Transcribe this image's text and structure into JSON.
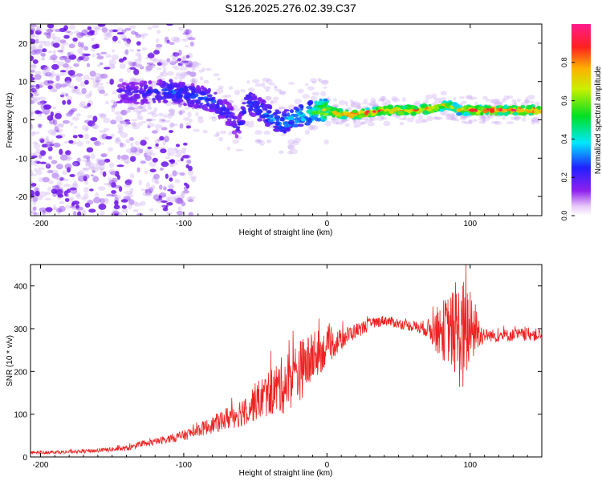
{
  "figure_title": "S126.2025.276.02.39.C37",
  "colors": {
    "background": "#ffffff",
    "axis": "#000000",
    "snr_line": "#ee2222",
    "scatter_faint": "#c9a6f2",
    "scatter_mid": "#8a3bf0",
    "scatter_dark": "#6a12e8"
  },
  "chart_data": [
    {
      "type": "heatmap",
      "title": "",
      "xlabel": "Height of straight line (km)",
      "ylabel": "Frequency (Hz)",
      "xlim": [
        -207,
        150
      ],
      "ylim": [
        -25,
        25
      ],
      "xticks": [
        -200,
        -100,
        0,
        100
      ],
      "yticks": [
        -20,
        -10,
        0,
        10,
        20
      ],
      "colorbar": {
        "label": "Normalized spectral amplitude",
        "range": [
          0,
          1
        ],
        "ticks": [
          0.0,
          0.2,
          0.4,
          0.6,
          0.8
        ],
        "tick_labels": [
          "0.0",
          "0.2",
          "0.4",
          "0.6",
          "0.8"
        ]
      },
      "ridge": {
        "description_free": true,
        "x": [
          -150,
          -130,
          -110,
          -95,
          -80,
          -70,
          -62,
          -55,
          -48,
          -40,
          -32,
          -25,
          -15,
          -5,
          0,
          10,
          20,
          40,
          60,
          75,
          85,
          92,
          100,
          120,
          150
        ],
        "freq": [
          7,
          7,
          7.5,
          6.5,
          5,
          2,
          -2,
          5,
          3,
          1,
          -1,
          0.5,
          1.5,
          2.5,
          2.5,
          1.5,
          1.5,
          2.5,
          2.5,
          3,
          4,
          2.5,
          2.5,
          2.5,
          2.5
        ],
        "amplitude": [
          0.22,
          0.22,
          0.3,
          0.28,
          0.28,
          0.25,
          0.22,
          0.3,
          0.28,
          0.35,
          0.35,
          0.4,
          0.45,
          0.6,
          0.7,
          0.92,
          0.92,
          0.85,
          0.85,
          0.8,
          0.7,
          0.75,
          0.92,
          0.92,
          0.92
        ]
      }
    },
    {
      "type": "line",
      "title": "",
      "xlabel": "Height of straight line (km)",
      "ylabel": "SNR (10 * v/v)",
      "xlim": [
        -207,
        150
      ],
      "ylim": [
        0,
        450
      ],
      "xticks": [
        -200,
        -100,
        0,
        100
      ],
      "yticks": [
        0,
        100,
        200,
        300,
        400
      ],
      "series": [
        {
          "name": "SNR",
          "x": [
            -207,
            -180,
            -160,
            -140,
            -120,
            -100,
            -80,
            -60,
            -45,
            -30,
            -20,
            -10,
            0,
            10,
            20,
            30,
            40,
            50,
            60,
            70,
            80,
            85,
            90,
            95,
            100,
            110,
            120,
            130,
            140,
            150
          ],
          "y": [
            10,
            12,
            15,
            20,
            35,
            50,
            75,
            105,
            140,
            170,
            200,
            230,
            255,
            275,
            295,
            310,
            320,
            312,
            305,
            300,
            295,
            300,
            290,
            280,
            300,
            285,
            283,
            285,
            287,
            285
          ],
          "noise_amplitude": [
            4,
            4,
            5,
            6,
            8,
            12,
            20,
            35,
            50,
            70,
            75,
            60,
            40,
            25,
            18,
            15,
            12,
            12,
            12,
            20,
            70,
            80,
            110,
            140,
            90,
            15,
            15,
            15,
            15,
            15
          ]
        }
      ]
    }
  ]
}
